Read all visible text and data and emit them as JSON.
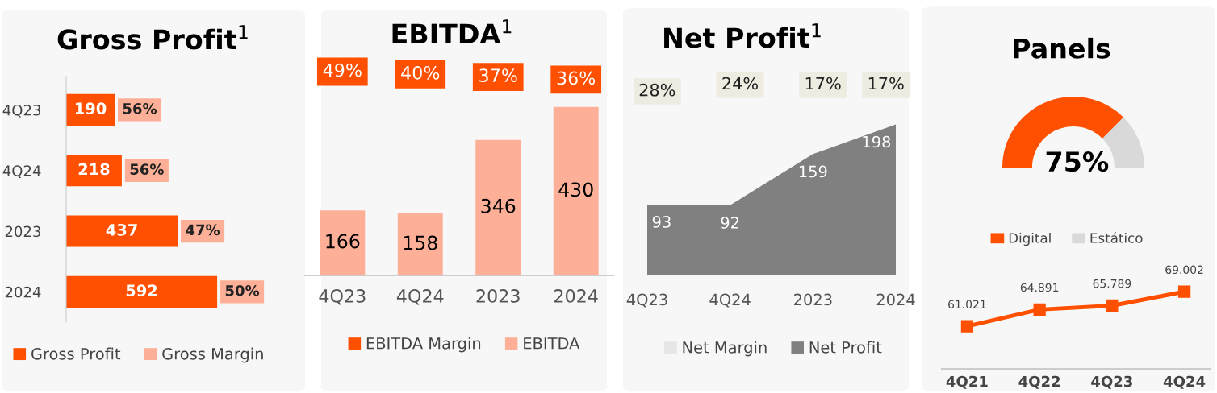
{
  "chart_data": [
    {
      "type": "bar",
      "title": "Gross Profit$^{1}$",
      "orientation": "horizontal",
      "categories": [
        "4Q23",
        "4Q24",
        "2023",
        "2024"
      ],
      "series": [
        {
          "name": "Gross Profit",
          "color": "#fe5000",
          "values": [
            190,
            218,
            437,
            592
          ]
        },
        {
          "name": "Gross Margin",
          "color": "#fdb097",
          "values": [
            null,
            null,
            null,
            null
          ],
          "value_labels": [
            "56%",
            "56%",
            "47%",
            "50%"
          ]
        }
      ],
      "data_labels": true,
      "legend": "bottom"
    },
    {
      "type": "bar",
      "title": "EBITDA$^{1}$",
      "categories": [
        "4Q23",
        "4Q24",
        "2023",
        "2024"
      ],
      "series": [
        {
          "name": "EBITDA Margin",
          "color": "#fe5000",
          "values": [
            null,
            null,
            null,
            null
          ],
          "value_labels": [
            "49%",
            "40%",
            "37%",
            "36%"
          ]
        },
        {
          "name": "EBITDA",
          "color": "#fdb097",
          "values": [
            166,
            158,
            346,
            430
          ]
        }
      ],
      "data_labels": true,
      "legend": "bottom"
    },
    {
      "type": "area",
      "title": "Net Profit$^{1}$",
      "categories": [
        "4Q23",
        "4Q24",
        "2023",
        "2024"
      ],
      "series": [
        {
          "name": "Net Margin",
          "color": "#eeebe0",
          "values": [
            null,
            null,
            null,
            null
          ],
          "value_labels": [
            "28%",
            "24%",
            "17%",
            "17%"
          ]
        },
        {
          "name": "Net Profit",
          "color": "#808080",
          "values": [
            93,
            92,
            159,
            198
          ]
        }
      ],
      "data_labels": true,
      "legend": "bottom"
    },
    {
      "type": "donut",
      "title": "Panels",
      "categories": [
        "Digital",
        "Estático"
      ],
      "values": [
        75,
        25
      ],
      "colors": [
        "#fe5000",
        "#d9d9d9"
      ],
      "value_labels": [
        "75%",
        null
      ],
      "legend": "bottom"
    },
    {
      "type": "line",
      "categories": [
        "4Q21",
        "4Q22",
        "4Q23",
        "4Q24"
      ],
      "series": [
        {
          "color": "#fe5000",
          "values": [
            61.021,
            64.891,
            65.789,
            69.002
          ]
        }
      ],
      "marker": "square",
      "data_labels": true
    }
  ]
}
